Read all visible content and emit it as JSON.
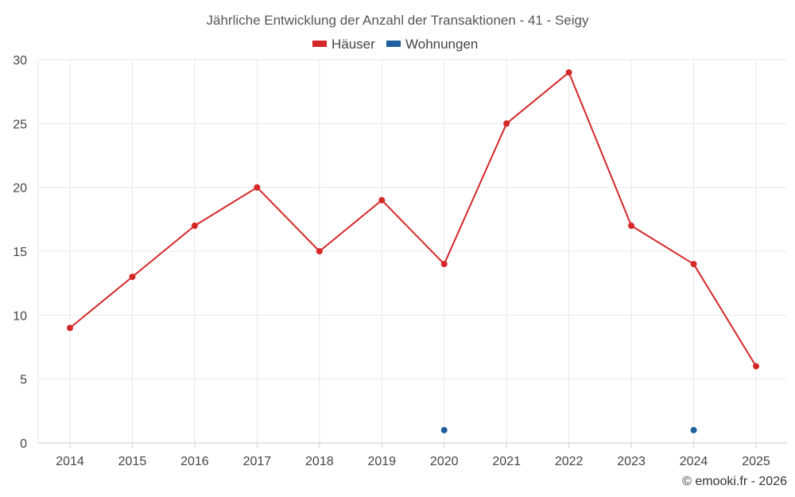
{
  "chart_data": {
    "type": "line",
    "title": "Jährliche Entwicklung der Anzahl der Transaktionen - 41 - Seigy",
    "xlabel": "",
    "ylabel": "",
    "categories": [
      "2014",
      "2015",
      "2016",
      "2017",
      "2018",
      "2019",
      "2020",
      "2021",
      "2022",
      "2023",
      "2024",
      "2025"
    ],
    "ylim": [
      0,
      30
    ],
    "yticks": [
      0,
      5,
      10,
      15,
      20,
      25,
      30
    ],
    "grid": true,
    "legend_position": "top-center",
    "series": [
      {
        "name": "Häuser",
        "color": "#d62728",
        "values": [
          9,
          13,
          17,
          20,
          15,
          19,
          14,
          25,
          29,
          17,
          14,
          6
        ],
        "line": true
      },
      {
        "name": "Wohnungen",
        "color": "#1f5f9e",
        "values": [
          null,
          null,
          null,
          null,
          null,
          null,
          1,
          null,
          null,
          null,
          1,
          null
        ],
        "line": false
      }
    ]
  },
  "credit": "© emooki.fr - 2026"
}
